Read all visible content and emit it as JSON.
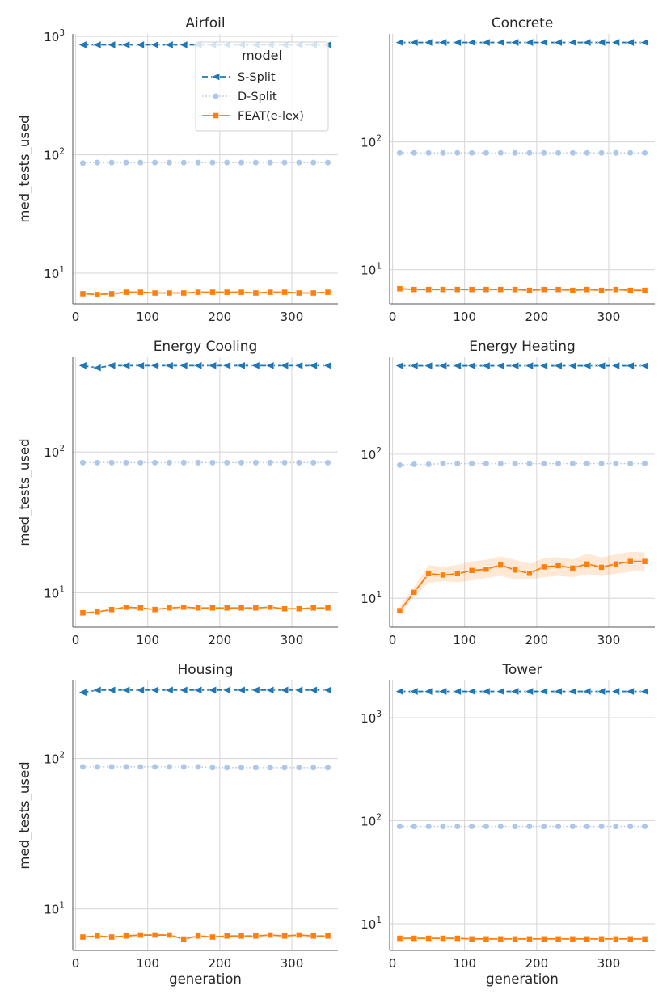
{
  "chart_data": {
    "type": "line",
    "yscale": "log",
    "xlabel": "generation",
    "ylabel": "med_tests_used",
    "grid": true,
    "legend": {
      "title": "model",
      "placement": "top-right of first panel",
      "entries": [
        "S-Split",
        "D-Split",
        "FEAT(e-lex)"
      ]
    },
    "x": [
      10,
      30,
      50,
      70,
      90,
      110,
      130,
      150,
      170,
      190,
      210,
      230,
      250,
      270,
      290,
      310,
      330,
      350
    ],
    "xticks": [
      0,
      100,
      200,
      300
    ],
    "colors": {
      "S-Split": "#1f77b4",
      "D-Split": "#aec7e8",
      "FEAT(e-lex)": "#ff7f0e"
    },
    "panels": [
      {
        "title": "Airfoil",
        "ylim": [
          5.5,
          1050
        ],
        "yticks": [
          10,
          100,
          1000
        ],
        "series": [
          {
            "name": "S-Split",
            "values": [
              850,
              850,
              850,
              850,
              850,
              850,
              850,
              850,
              850,
              850,
              850,
              850,
              850,
              850,
              850,
              850,
              850,
              850
            ]
          },
          {
            "name": "D-Split",
            "values": [
              85,
              86,
              86,
              86,
              86,
              86,
              86,
              86,
              86,
              86,
              86,
              86,
              86,
              86,
              86,
              86,
              86,
              86
            ]
          },
          {
            "name": "FEAT(e-lex)",
            "values": [
              6.7,
              6.6,
              6.7,
              6.9,
              6.9,
              6.8,
              6.8,
              6.8,
              6.9,
              6.9,
              6.9,
              6.9,
              6.8,
              6.9,
              6.9,
              6.8,
              6.8,
              6.9
            ]
          }
        ]
      },
      {
        "title": "Concrete",
        "ylim": [
          5.4,
          700
        ],
        "yticks": [
          10,
          100
        ],
        "series": [
          {
            "name": "S-Split",
            "values": [
              600,
              600,
              600,
              600,
              600,
              600,
              600,
              600,
              600,
              600,
              600,
              600,
              600,
              600,
              600,
              600,
              600,
              600
            ]
          },
          {
            "name": "D-Split",
            "values": [
              82,
              82,
              82,
              82,
              82,
              82,
              82,
              82,
              82,
              82,
              82,
              82,
              82,
              82,
              82,
              82,
              82,
              82
            ]
          },
          {
            "name": "FEAT(e-lex)",
            "values": [
              7.1,
              7.0,
              7.0,
              7.0,
              7.0,
              7.0,
              7.0,
              7.0,
              7.0,
              6.9,
              7.0,
              7.0,
              6.9,
              7.0,
              6.9,
              7.0,
              6.9,
              6.9
            ]
          }
        ]
      },
      {
        "title": "Energy Cooling",
        "ylim": [
          5.7,
          470
        ],
        "yticks": [
          10,
          100
        ],
        "series": [
          {
            "name": "S-Split",
            "values": [
              410,
              395,
              410,
              410,
              410,
              410,
              410,
              410,
              410,
              410,
              410,
              410,
              410,
              410,
              410,
              410,
              410,
              410
            ]
          },
          {
            "name": "D-Split",
            "values": [
              84,
              84,
              84,
              84,
              84,
              84,
              84,
              84,
              84,
              84,
              84,
              84,
              84,
              84,
              84,
              84,
              84,
              84
            ]
          },
          {
            "name": "FEAT(e-lex)",
            "values": [
              7.2,
              7.3,
              7.6,
              7.9,
              7.8,
              7.6,
              7.8,
              7.9,
              7.8,
              7.8,
              7.8,
              7.8,
              7.8,
              7.9,
              7.7,
              7.7,
              7.8,
              7.8
            ]
          }
        ]
      },
      {
        "title": "Energy Heating",
        "ylim": [
          6.3,
          470
        ],
        "yticks": [
          10,
          100
        ],
        "band": {
          "series": "FEAT(e-lex)",
          "lower": [
            7.7,
            10.3,
            12.8,
            13.1,
            12.9,
            13.3,
            13.8,
            14.3,
            13.5,
            13.5,
            14.0,
            14.3,
            14.0,
            14.7,
            14.3,
            14.8,
            15.3,
            15.6
          ],
          "upper": [
            8.8,
            12.0,
            17.0,
            16.5,
            17.0,
            18.0,
            18.5,
            19.5,
            18.5,
            17.3,
            19.0,
            19.3,
            18.6,
            20.3,
            19.2,
            20.2,
            21.0,
            20.8
          ]
        },
        "series": [
          {
            "name": "S-Split",
            "values": [
              410,
              410,
              410,
              410,
              410,
              410,
              410,
              410,
              410,
              410,
              410,
              410,
              410,
              410,
              410,
              410,
              410,
              410
            ]
          },
          {
            "name": "D-Split",
            "values": [
              84,
              85,
              85,
              86,
              86,
              86,
              86,
              86,
              86,
              86,
              86,
              86,
              86,
              86,
              86,
              86,
              86,
              86
            ]
          },
          {
            "name": "FEAT(e-lex)",
            "values": [
              8.2,
              11.0,
              14.8,
              14.5,
              14.8,
              15.6,
              15.9,
              17.0,
              15.7,
              14.9,
              16.5,
              16.8,
              16.2,
              17.3,
              16.4,
              17.3,
              18.0,
              18.0
            ]
          }
        ]
      },
      {
        "title": "Housing",
        "ylim": [
          5.3,
          330
        ],
        "yticks": [
          10,
          100
        ],
        "series": [
          {
            "name": "S-Split",
            "values": [
              275,
              285,
              285,
              285,
              285,
              285,
              285,
              285,
              285,
              285,
              285,
              285,
              285,
              285,
              285,
              285,
              285,
              285
            ]
          },
          {
            "name": "D-Split",
            "values": [
              88,
              88,
              88,
              88,
              88,
              88,
              88,
              88,
              88,
              87,
              87,
              87,
              87,
              87,
              87,
              87,
              87,
              87
            ]
          },
          {
            "name": "FEAT(e-lex)",
            "values": [
              6.5,
              6.6,
              6.5,
              6.6,
              6.7,
              6.7,
              6.7,
              6.3,
              6.6,
              6.5,
              6.6,
              6.6,
              6.6,
              6.7,
              6.6,
              6.7,
              6.6,
              6.6
            ]
          }
        ]
      },
      {
        "title": "Tower",
        "ylim": [
          5.5,
          2300
        ],
        "yticks": [
          10,
          100,
          1000
        ],
        "series": [
          {
            "name": "S-Split",
            "values": [
              1800,
              1800,
              1800,
              1800,
              1800,
              1800,
              1800,
              1800,
              1800,
              1800,
              1800,
              1800,
              1800,
              1800,
              1800,
              1800,
              1800,
              1800
            ]
          },
          {
            "name": "D-Split",
            "values": [
              88,
              88,
              88,
              88,
              88,
              88,
              88,
              88,
              88,
              88,
              88,
              88,
              88,
              88,
              88,
              88,
              88,
              88
            ]
          },
          {
            "name": "FEAT(e-lex)",
            "values": [
              7.2,
              7.2,
              7.2,
              7.2,
              7.2,
              7.1,
              7.1,
              7.1,
              7.1,
              7.1,
              7.1,
              7.1,
              7.1,
              7.1,
              7.1,
              7.1,
              7.1,
              7.1
            ]
          }
        ]
      }
    ]
  }
}
